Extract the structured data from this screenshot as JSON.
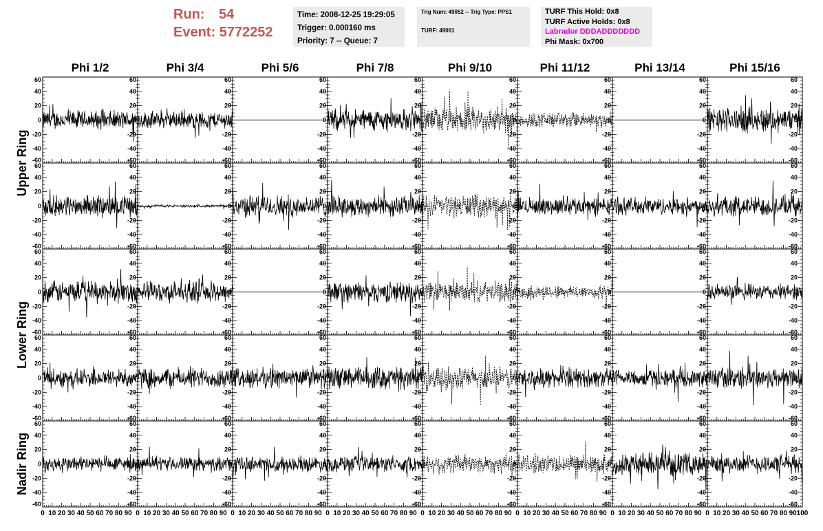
{
  "run": {
    "run_label": "Run:",
    "run_value": "54",
    "event_label": "Event:",
    "event_value": "5772252"
  },
  "info": {
    "time": "Time: 2008-12-25 19:29:05",
    "trigger": "Trigger: 0.000160 ms",
    "priority": "Priority: 7 -- Queue: 7",
    "trig_num": "Trig Num: 49052 -- Trig Type: PPS1",
    "turf": "TURF: 49061",
    "turf_this_hold": "TURF This Hold: 0x8",
    "turf_active_holds": "TURF Active Holds: 0x8",
    "labrador": "Labrador DDDADDDDDDD",
    "phi_mask": "Phi Mask: 0x700"
  },
  "colors": {
    "run_text": "#c8574f",
    "labrador": "#e000e0",
    "info_bg": "#ebebeb"
  },
  "chart_data": {
    "type": "line",
    "columns": [
      "Phi 1/2",
      "Phi 3/4",
      "Phi 5/6",
      "Phi 7/8",
      "Phi 9/10",
      "Phi 11/12",
      "Phi 13/14",
      "Phi 15/16"
    ],
    "rings": [
      "Upper Ring",
      "Lower Ring",
      "Nadir Ring"
    ],
    "xlim": [
      0,
      100
    ],
    "ylim": [
      -60,
      60
    ],
    "x_ticks": [
      0,
      10,
      20,
      30,
      40,
      50,
      60,
      70,
      80,
      90,
      100
    ],
    "y_ticks": [
      -60,
      -40,
      -20,
      0,
      20,
      40,
      60
    ],
    "panels": [
      [
        {
          "amp": 11,
          "style": "solid"
        },
        {
          "amp": 10,
          "style": "solid"
        },
        {
          "amp": 0,
          "style": "flat"
        },
        {
          "amp": 13,
          "style": "solid"
        },
        {
          "amp": 15,
          "style": "dotted"
        },
        {
          "amp": 9,
          "style": "dotted"
        },
        {
          "amp": 0,
          "style": "flat"
        },
        {
          "amp": 15,
          "style": "solid"
        }
      ],
      [
        {
          "amp": 12,
          "style": "solid"
        },
        {
          "amp": 1.5,
          "style": "solid"
        },
        {
          "amp": 13,
          "style": "solid"
        },
        {
          "amp": 12,
          "style": "solid"
        },
        {
          "amp": 13,
          "style": "dotted"
        },
        {
          "amp": 10,
          "style": "solid"
        },
        {
          "amp": 10,
          "style": "solid"
        },
        {
          "amp": 12,
          "style": "solid"
        }
      ],
      [
        {
          "amp": 13,
          "style": "solid"
        },
        {
          "amp": 12,
          "style": "solid"
        },
        {
          "amp": 0,
          "style": "flat"
        },
        {
          "amp": 12,
          "style": "solid"
        },
        {
          "amp": 12,
          "style": "dotted"
        },
        {
          "amp": 8,
          "style": "dotted"
        },
        {
          "amp": 0,
          "style": "flat"
        },
        {
          "amp": 9,
          "style": "solid"
        }
      ],
      [
        {
          "amp": 11,
          "style": "solid"
        },
        {
          "amp": 12,
          "style": "solid"
        },
        {
          "amp": 12,
          "style": "solid"
        },
        {
          "amp": 13,
          "style": "solid"
        },
        {
          "amp": 13,
          "style": "dotted"
        },
        {
          "amp": 11,
          "style": "solid"
        },
        {
          "amp": 10,
          "style": "solid"
        },
        {
          "amp": 13,
          "style": "solid"
        }
      ],
      [
        {
          "amp": 9,
          "style": "solid"
        },
        {
          "amp": 8,
          "style": "solid"
        },
        {
          "amp": 9,
          "style": "solid"
        },
        {
          "amp": 9,
          "style": "solid"
        },
        {
          "amp": 11,
          "style": "dotted"
        },
        {
          "amp": 11,
          "style": "dotted"
        },
        {
          "amp": 13,
          "style": "solid"
        },
        {
          "amp": 11,
          "style": "solid"
        }
      ]
    ]
  }
}
